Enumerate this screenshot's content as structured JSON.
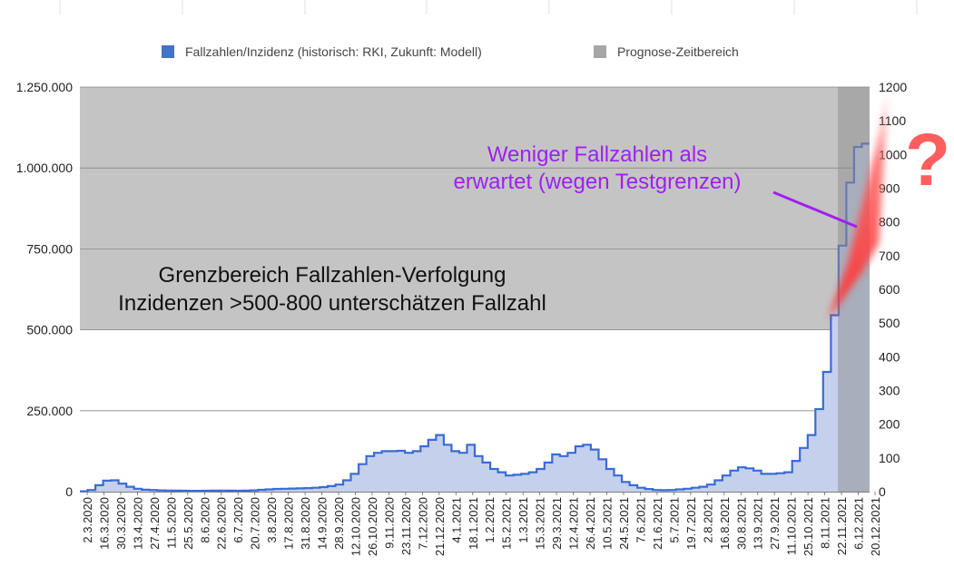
{
  "chart_data": {
    "type": "area",
    "legend": [
      {
        "label": "Fallzahlen/Inzidenz (historisch: RKI, Zukunft: Modell)",
        "color": "#4472c4"
      },
      {
        "label": "Prognose-Zeitbereich",
        "color": "#a6a6a6"
      }
    ],
    "legend_placement": "top",
    "grid": true,
    "y_left": {
      "min": 0,
      "max": 1250000,
      "ticks": [
        "0",
        "250.000",
        "500.000",
        "750.000",
        "1.000.000",
        "1.250.000"
      ]
    },
    "y_right": {
      "min": 0,
      "max": 1200,
      "ticks": [
        "0",
        "100",
        "200",
        "300",
        "400",
        "500",
        "600",
        "700",
        "800",
        "900",
        "1000",
        "1100",
        "1200"
      ]
    },
    "x_labels": [
      "2.3.2020",
      "16.3.2020",
      "30.3.2020",
      "13.4.2020",
      "27.4.2020",
      "11.5.2020",
      "25.5.2020",
      "8.6.2020",
      "22.6.2020",
      "6.7.2020",
      "20.7.2020",
      "3.8.2020",
      "17.8.2020",
      "31.8.2020",
      "14.9.2020",
      "28.9.2020",
      "12.10.2020",
      "26.10.2020",
      "9.11.2020",
      "23.11.2020",
      "7.12.2020",
      "21.12.2020",
      "4.1.2021",
      "18.1.2021",
      "1.2.2021",
      "15.2.2021",
      "1.3.2021",
      "15.3.2021",
      "29.3.2021",
      "12.4.2021",
      "26.4.2021",
      "10.5.2021",
      "24.5.2021",
      "7.6.2021",
      "21.6.2021",
      "5.7.2021",
      "19.7.2021",
      "2.8.2021",
      "16.8.2021",
      "30.8.2021",
      "13.9.2021",
      "27.9.2021",
      "11.10.2021",
      "25.10.2021",
      "8.11.2021",
      "22.11.2021",
      "6.12.2021",
      "20.12.2021"
    ],
    "series": [
      {
        "name": "Fallzahlen/Inzidenz (historisch: RKI, Zukunft: Modell)",
        "values": [
          1000,
          5000,
          20000,
          34000,
          35000,
          25000,
          15000,
          9000,
          6000,
          5000,
          4000,
          3500,
          3000,
          2800,
          2500,
          2500,
          2700,
          3000,
          3500,
          3000,
          2800,
          3000,
          4000,
          5500,
          7000,
          8500,
          9000,
          9500,
          10000,
          11000,
          12000,
          14000,
          17000,
          22000,
          35000,
          55000,
          85000,
          110000,
          120000,
          125000,
          125000,
          126000,
          120000,
          125000,
          140000,
          160000,
          175000,
          145000,
          125000,
          120000,
          145000,
          110000,
          90000,
          70000,
          60000,
          50000,
          52000,
          55000,
          60000,
          70000,
          90000,
          115000,
          110000,
          120000,
          140000,
          145000,
          130000,
          100000,
          70000,
          50000,
          30000,
          20000,
          12000,
          8000,
          5000,
          4500,
          5000,
          7000,
          9000,
          12000,
          15000,
          22000,
          35000,
          50000,
          65000,
          75000,
          72000,
          65000,
          55000,
          55000,
          57000,
          60000,
          95000,
          135000,
          175000,
          255000,
          370000,
          545000,
          760000,
          955000,
          1065000,
          1075000
        ]
      }
    ],
    "shaded_region": {
      "label": "Grenzbereich Fallzahlen-Verfolgung",
      "y_from": 500000,
      "y_to": 1250000
    },
    "forecast_region": {
      "x_from": "22.11.2021",
      "x_to": "20.12.2021"
    }
  },
  "annotations": {
    "boundary_line1": "Grenzbereich Fallzahlen-Verfolgung",
    "boundary_line2": "Inzidenzen >500-800 unterschätzen Fallzahl",
    "weniger_line1": "Weniger Fallzahlen als",
    "weniger_line2": "erwartet (wegen Testgrenzen)",
    "question_mark": "?"
  },
  "colors": {
    "line": "#3a6bd4",
    "fill": "#c5d1ec",
    "boundary": "#c4c4c4",
    "forecast": "#a6a6a6",
    "purple": "#a020f0",
    "red": "#ff4d4d"
  }
}
